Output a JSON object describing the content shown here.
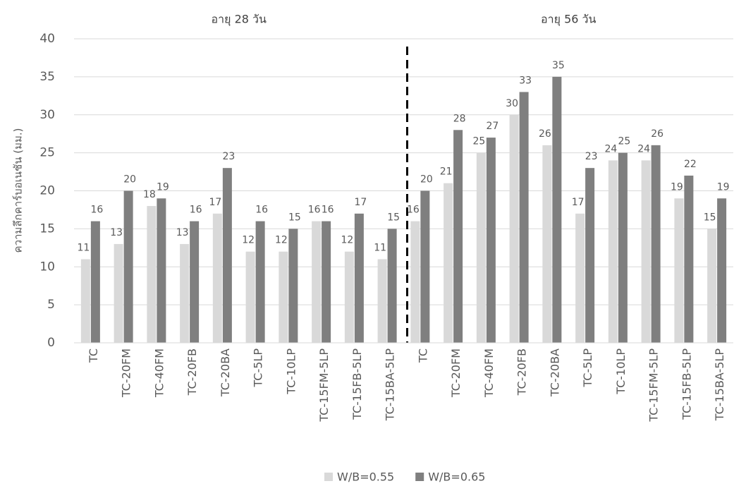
{
  "chart_data": {
    "type": "bar",
    "y_label": "ความลึกคาร์บอเนชัน (มม.)",
    "annotations": [
      "อายุ 28 วัน",
      "อายุ 56 วัน"
    ],
    "categories": [
      "TC",
      "TC-20FM",
      "TC-40FM",
      "TC-20FB",
      "TC-20BA",
      "TC-5LP",
      "TC-10LP",
      "TC-15FM-5LP",
      "TC-15FB-5LP",
      "TC-15BA-5LP",
      "TC",
      "TC-20FM",
      "TC-40FM",
      "TC-20FB",
      "TC-20BA",
      "TC-5LP",
      "TC-10LP",
      "TC-15FM-5LP",
      "TC-15FB-5LP",
      "TC-15BA-5LP"
    ],
    "series": [
      {
        "name": "W/B=0.55",
        "color": "#d9d9d9",
        "values": [
          11,
          13,
          18,
          13,
          17,
          12,
          12,
          16,
          12,
          11,
          16,
          21,
          25,
          30,
          26,
          17,
          24,
          24,
          19,
          15
        ]
      },
      {
        "name": "W/B=0.65",
        "color": "#7f7f7f",
        "values": [
          16,
          20,
          19,
          16,
          23,
          16,
          15,
          16,
          17,
          15,
          20,
          28,
          27,
          33,
          35,
          23,
          25,
          26,
          22,
          19
        ]
      }
    ],
    "ylim": [
      0,
      40
    ],
    "yticks": [
      0,
      5,
      10,
      15,
      20,
      25,
      30,
      35,
      40
    ],
    "grid": true,
    "legend": "bottom"
  }
}
